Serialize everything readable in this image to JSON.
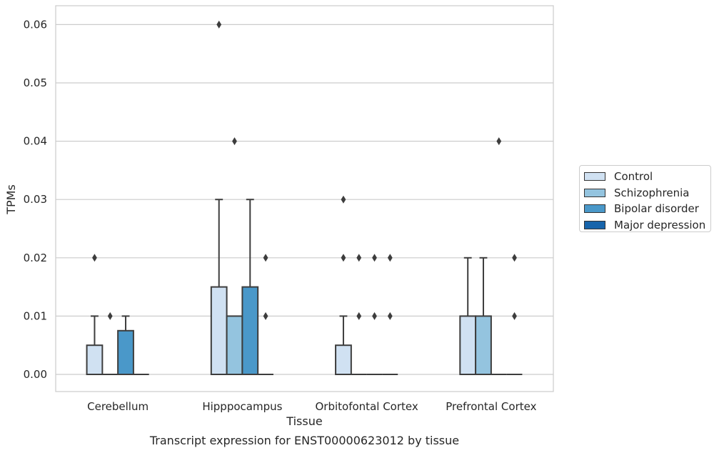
{
  "chart_data": {
    "type": "box",
    "title": "Transcript expression for ENST00000623012 by tissue",
    "xlabel": "Tissue",
    "ylabel": "TPMs",
    "ylim": [
      -0.003,
      0.063
    ],
    "yticks": [
      "0.00",
      "0.01",
      "0.02",
      "0.03",
      "0.04",
      "0.05",
      "0.06"
    ],
    "ytick_values": [
      0,
      0.01,
      0.02,
      0.03,
      0.04,
      0.05,
      0.06
    ],
    "grid": true,
    "legend_position": "right",
    "categories": [
      "Cerebellum",
      "Hipppocampus",
      "Orbitofontal Cortex",
      "Prefrontal Cortex"
    ],
    "series": [
      {
        "name": "Control",
        "color": "#d0e1f2",
        "boxes": [
          {
            "q1": 0,
            "median": 0,
            "q3": 0.005,
            "whisker_low": 0,
            "whisker_high": 0.01,
            "outliers": [
              0.02
            ]
          },
          {
            "q1": 0,
            "median": 0,
            "q3": 0.015,
            "whisker_low": 0,
            "whisker_high": 0.03,
            "outliers": [
              0.06
            ]
          },
          {
            "q1": 0,
            "median": 0,
            "q3": 0.005,
            "whisker_low": 0,
            "whisker_high": 0.01,
            "outliers": [
              0.02,
              0.03
            ]
          },
          {
            "q1": 0,
            "median": 0,
            "q3": 0.01,
            "whisker_low": 0,
            "whisker_high": 0.02,
            "outliers": []
          }
        ]
      },
      {
        "name": "Schizophrenia",
        "color": "#94c4df",
        "boxes": [
          {
            "q1": 0,
            "median": 0,
            "q3": 0,
            "whisker_low": 0,
            "whisker_high": 0,
            "outliers": [
              0.01
            ]
          },
          {
            "q1": 0,
            "median": 0,
            "q3": 0.01,
            "whisker_low": 0,
            "whisker_high": 0.01,
            "outliers": [
              0.04
            ]
          },
          {
            "q1": 0,
            "median": 0,
            "q3": 0,
            "whisker_low": 0,
            "whisker_high": 0,
            "outliers": [
              0.01,
              0.02
            ]
          },
          {
            "q1": 0,
            "median": 0,
            "q3": 0.01,
            "whisker_low": 0,
            "whisker_high": 0.02,
            "outliers": []
          }
        ]
      },
      {
        "name": "Bipolar disorder",
        "color": "#4a98c9",
        "boxes": [
          {
            "q1": 0,
            "median": 0,
            "q3": 0.0075,
            "whisker_low": 0,
            "whisker_high": 0.01,
            "outliers": []
          },
          {
            "q1": 0,
            "median": 0,
            "q3": 0.015,
            "whisker_low": 0,
            "whisker_high": 0.03,
            "outliers": []
          },
          {
            "q1": 0,
            "median": 0,
            "q3": 0,
            "whisker_low": 0,
            "whisker_high": 0,
            "outliers": [
              0.01,
              0.02
            ]
          },
          {
            "q1": 0,
            "median": 0,
            "q3": 0,
            "whisker_low": 0,
            "whisker_high": 0,
            "outliers": [
              0.04
            ]
          }
        ]
      },
      {
        "name": "Major depression",
        "color": "#1764ab",
        "boxes": [
          {
            "q1": 0,
            "median": 0,
            "q3": 0,
            "whisker_low": 0,
            "whisker_high": 0,
            "outliers": []
          },
          {
            "q1": 0,
            "median": 0,
            "q3": 0,
            "whisker_low": 0,
            "whisker_high": 0,
            "outliers": [
              0.01,
              0.02
            ]
          },
          {
            "q1": 0,
            "median": 0,
            "q3": 0,
            "whisker_low": 0,
            "whisker_high": 0,
            "outliers": [
              0.01,
              0.02
            ]
          },
          {
            "q1": 0,
            "median": 0,
            "q3": 0,
            "whisker_low": 0,
            "whisker_high": 0,
            "outliers": [
              0.01,
              0.02
            ]
          }
        ]
      }
    ]
  }
}
